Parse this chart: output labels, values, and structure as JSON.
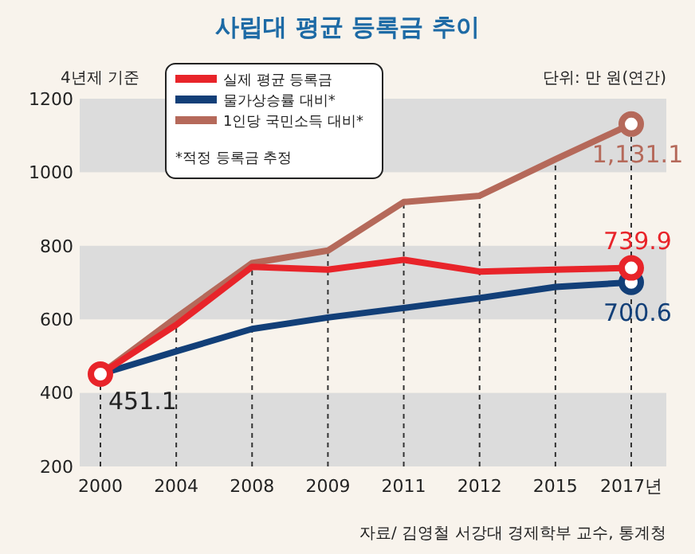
{
  "chart_data": {
    "type": "line",
    "title": "사립대 평균 등록금 추이",
    "categories": [
      "2000",
      "2004",
      "2008",
      "2009",
      "2011",
      "2012",
      "2015",
      "2017년"
    ],
    "series": [
      {
        "name": "1인당 국민소득 대비*",
        "color": "#b5695a",
        "values": [
          451,
          605,
          753,
          787,
          919,
          936,
          1035,
          1131.1
        ],
        "value_labels": [
          null,
          null,
          null,
          null,
          null,
          null,
          null,
          "1,131.1"
        ]
      },
      {
        "name": "물가상승률 대비*",
        "color": "#123f78",
        "values": [
          451,
          513,
          574,
          605,
          631,
          658,
          688,
          700.6
        ],
        "value_labels": [
          null,
          null,
          null,
          null,
          null,
          null,
          null,
          "700.6"
        ]
      },
      {
        "name": "실제 평균 등록금",
        "color": "#e8242a",
        "values": [
          451.1,
          585,
          743,
          735,
          762,
          730,
          735,
          739.9
        ],
        "value_labels": [
          "451.1",
          null,
          null,
          null,
          null,
          null,
          null,
          "739.9"
        ]
      }
    ],
    "ylim": [
      200,
      1200
    ],
    "yticks": [
      200,
      400,
      600,
      800,
      1000,
      1200
    ],
    "bands": [
      {
        "axis": "y",
        "from": 200,
        "to": 400,
        "color": "#dcdcdc"
      },
      {
        "axis": "y",
        "from": 600,
        "to": 800,
        "color": "#dcdcdc"
      },
      {
        "axis": "y",
        "from": 1000,
        "to": 1200,
        "color": "#dcdcdc"
      }
    ],
    "ref_lines": [
      {
        "axis": "x",
        "value": "2000",
        "line_style": "dashed"
      },
      {
        "axis": "x",
        "value": "2004",
        "line_style": "dashed"
      },
      {
        "axis": "x",
        "value": "2008",
        "line_style": "dashed"
      },
      {
        "axis": "x",
        "value": "2009",
        "line_style": "dashed"
      },
      {
        "axis": "x",
        "value": "2011",
        "line_style": "dashed"
      },
      {
        "axis": "x",
        "value": "2012",
        "line_style": "dashed"
      },
      {
        "axis": "x",
        "value": "2015",
        "line_style": "dashed"
      },
      {
        "axis": "x",
        "value": "2017년",
        "line_style": "dashed"
      }
    ],
    "legend": "top left",
    "annotations": [
      "4년제 기준",
      "단위: 만 원(연간)",
      "*적정 등록금 추정",
      "자료/ 김영철 서강대 경제학부 교수, 통계청"
    ]
  }
}
